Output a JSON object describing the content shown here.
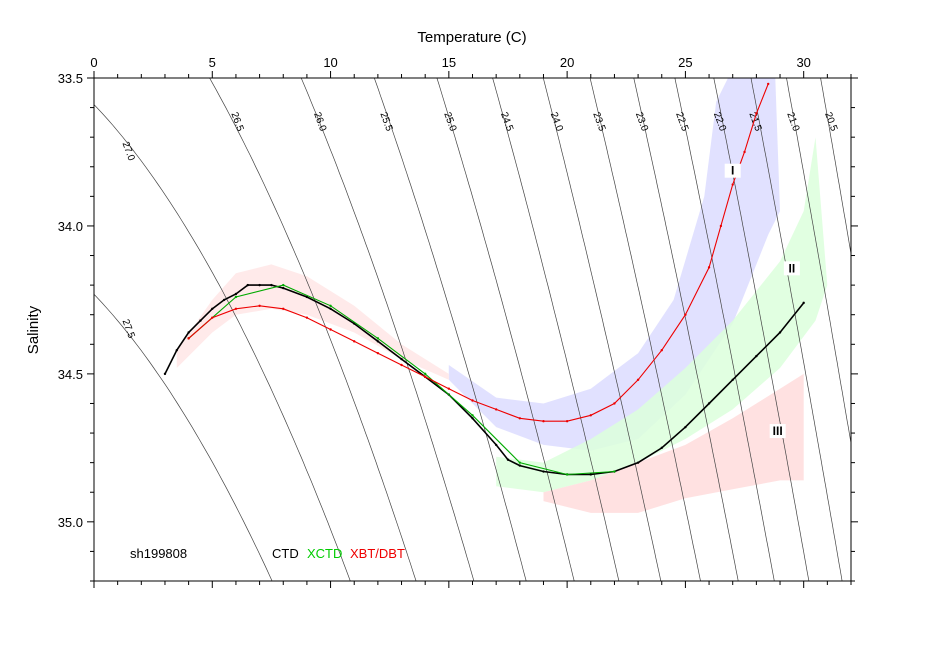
{
  "chart_data": {
    "type": "scatter",
    "title": "",
    "xlabel": "Temperature (C)",
    "ylabel": "Salinity",
    "xlim": [
      0,
      32
    ],
    "ylim": [
      35.2,
      33.5
    ],
    "x_ticks": [
      0,
      5,
      10,
      15,
      20,
      25,
      30
    ],
    "y_ticks": [
      33.5,
      34.0,
      34.5,
      35.0
    ],
    "x_tick_labels": [
      "0",
      "5",
      "10",
      "15",
      "20",
      "25",
      "30"
    ],
    "y_tick_labels": [
      "33.5",
      "34.0",
      "34.5",
      "35.0"
    ],
    "x_axis_position": "top",
    "grid": false,
    "station_label": "sh199808",
    "legend": [
      {
        "name": "CTD",
        "color": "#000000"
      },
      {
        "name": "XCTD",
        "color": "#00cc00"
      },
      {
        "name": "XBT/DBT",
        "color": "#ee0000"
      }
    ],
    "water_masses": [
      {
        "label": "I",
        "x": 27.0,
        "y": 33.82,
        "color": "#dcdcff",
        "upper": [
          [
            15,
            34.47
          ],
          [
            17,
            34.58
          ],
          [
            19,
            34.6
          ],
          [
            21,
            34.55
          ],
          [
            23,
            34.43
          ],
          [
            24.5,
            34.25
          ],
          [
            25.8,
            33.9
          ],
          [
            26.3,
            33.58
          ],
          [
            26.8,
            33.5
          ]
        ],
        "lower": [
          [
            15,
            34.52
          ],
          [
            17,
            34.68
          ],
          [
            19,
            34.74
          ],
          [
            21,
            34.76
          ],
          [
            23,
            34.72
          ],
          [
            25,
            34.57
          ],
          [
            27,
            34.33
          ],
          [
            28.5,
            34.03
          ],
          [
            29,
            33.95
          ],
          [
            28.8,
            33.5
          ]
        ]
      },
      {
        "label": "II",
        "x": 29.5,
        "y": 34.15,
        "color": "#dcffdc",
        "upper": [
          [
            17,
            34.78
          ],
          [
            19,
            34.8
          ],
          [
            21,
            34.72
          ],
          [
            23,
            34.62
          ],
          [
            25,
            34.48
          ],
          [
            27,
            34.32
          ],
          [
            29,
            34.12
          ],
          [
            30,
            33.95
          ],
          [
            30.5,
            33.7
          ]
        ],
        "lower": [
          [
            17,
            34.88
          ],
          [
            19,
            34.9
          ],
          [
            21,
            34.86
          ],
          [
            23,
            34.8
          ],
          [
            25,
            34.72
          ],
          [
            27,
            34.62
          ],
          [
            29,
            34.48
          ],
          [
            30.5,
            34.32
          ],
          [
            31,
            34.2
          ]
        ]
      },
      {
        "label": "III",
        "x": 28.9,
        "y": 34.7,
        "color": "#ffdcdc",
        "upper": [
          [
            19,
            34.9
          ],
          [
            21,
            34.86
          ],
          [
            23,
            34.8
          ],
          [
            25,
            34.74
          ],
          [
            27,
            34.65
          ],
          [
            29,
            34.55
          ],
          [
            30,
            34.5
          ]
        ],
        "lower": [
          [
            19,
            34.93
          ],
          [
            21,
            34.97
          ],
          [
            23,
            34.97
          ],
          [
            25,
            34.92
          ],
          [
            27,
            34.89
          ],
          [
            29,
            34.86
          ],
          [
            30,
            34.86
          ]
        ]
      },
      {
        "label": "",
        "x": 6.0,
        "y": 34.3,
        "color": "#ffe6e6",
        "upper": [
          [
            3.5,
            34.42
          ],
          [
            5,
            34.25
          ],
          [
            6,
            34.16
          ],
          [
            7.5,
            34.13
          ],
          [
            9,
            34.17
          ],
          [
            11,
            34.27
          ],
          [
            13,
            34.4
          ],
          [
            15,
            34.5
          ]
        ],
        "lower": [
          [
            3.5,
            34.48
          ],
          [
            5,
            34.36
          ],
          [
            6,
            34.3
          ],
          [
            7.5,
            34.28
          ],
          [
            9,
            34.3
          ],
          [
            11,
            34.36
          ],
          [
            13,
            34.45
          ],
          [
            15,
            34.52
          ]
        ]
      }
    ],
    "series": [
      {
        "name": "CTD",
        "color": "#000000",
        "x": [
          3.0,
          3.5,
          4.0,
          4.5,
          5.0,
          5.5,
          6.0,
          6.5,
          7.0,
          7.5,
          8.0,
          9.0,
          10.0,
          11.0,
          12.0,
          13.0,
          14.0,
          15.0,
          16.0,
          17.0,
          17.5,
          18.0,
          19.0,
          20.0,
          21.0,
          22.0,
          23.0,
          24.0,
          25.0,
          26.0,
          27.0,
          28.0,
          29.0,
          30.0
        ],
        "y": [
          34.5,
          34.42,
          34.36,
          34.32,
          34.28,
          34.25,
          34.23,
          34.2,
          34.2,
          34.2,
          34.21,
          34.24,
          34.28,
          34.33,
          34.39,
          34.45,
          34.51,
          34.57,
          34.65,
          34.74,
          34.79,
          34.81,
          34.83,
          34.84,
          34.84,
          34.83,
          34.8,
          34.75,
          34.68,
          34.6,
          34.52,
          34.44,
          34.36,
          34.26
        ]
      },
      {
        "name": "XCTD",
        "color": "#00aa00",
        "x": [
          4.0,
          6.0,
          8.0,
          10.0,
          12.0,
          14.0,
          16.0,
          18.0,
          20.0,
          22.0
        ],
        "y": [
          34.38,
          34.24,
          34.2,
          34.27,
          34.38,
          34.5,
          34.64,
          34.8,
          34.84,
          34.83
        ]
      },
      {
        "name": "XBT/DBT",
        "color": "#ee0000",
        "x": [
          4.0,
          5.0,
          6.0,
          7.0,
          8.0,
          9.0,
          10.0,
          11.0,
          12.0,
          13.0,
          14.0,
          15.0,
          16.0,
          17.0,
          18.0,
          19.0,
          20.0,
          21.0,
          22.0,
          23.0,
          24.0,
          25.0,
          26.0,
          26.5,
          27.0,
          27.5,
          28.0,
          28.5
        ],
        "y": [
          34.38,
          34.31,
          34.28,
          34.27,
          34.28,
          34.31,
          34.35,
          34.39,
          34.43,
          34.47,
          34.51,
          34.55,
          34.59,
          34.62,
          34.65,
          34.66,
          34.66,
          34.64,
          34.6,
          34.52,
          34.42,
          34.3,
          34.14,
          34.0,
          33.86,
          33.75,
          33.62,
          33.52
        ]
      }
    ],
    "density_contours": [
      {
        "label": "20.5",
        "label_x": 30.9,
        "label_y": 33.62
      },
      {
        "label": "21.0",
        "label_x": 29.3,
        "label_y": 33.62
      },
      {
        "label": "21.5",
        "label_x": 27.7,
        "label_y": 33.62
      },
      {
        "label": "22.0",
        "label_x": 26.2,
        "label_y": 33.62
      },
      {
        "label": "22.5",
        "label_x": 24.6,
        "label_y": 33.62
      },
      {
        "label": "23.0",
        "label_x": 22.9,
        "label_y": 33.62
      },
      {
        "label": "23.5",
        "label_x": 21.1,
        "label_y": 33.62
      },
      {
        "label": "24.0",
        "label_x": 19.3,
        "label_y": 33.62
      },
      {
        "label": "24.5",
        "label_x": 17.2,
        "label_y": 33.62
      },
      {
        "label": "25.0",
        "label_x": 14.8,
        "label_y": 33.62
      },
      {
        "label": "25.5",
        "label_x": 12.1,
        "label_y": 33.62
      },
      {
        "label": "26.0",
        "label_x": 9.3,
        "label_y": 33.62
      },
      {
        "label": "26.5",
        "label_x": 5.8,
        "label_y": 33.62
      },
      {
        "label": "27.0",
        "label_x": 1.2,
        "label_y": 33.72
      },
      {
        "label": "27.5",
        "label_x": 1.2,
        "label_y": 34.32
      }
    ]
  }
}
